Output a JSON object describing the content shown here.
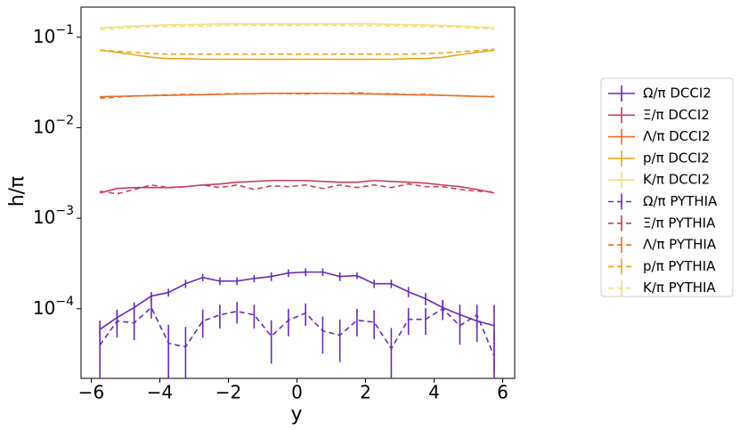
{
  "chart_data": {
    "type": "line",
    "y_label": "h/π",
    "x_label": "y",
    "log_y": true,
    "legend_position": "right",
    "xlim": [
      -6.3,
      6.35
    ],
    "ylim": [
      1.7e-05,
      0.215
    ],
    "xticks": [
      {
        "value": -6,
        "label": "−6"
      },
      {
        "value": -4,
        "label": "−4"
      },
      {
        "value": -2,
        "label": "−2"
      },
      0,
      2,
      4,
      6
    ],
    "yticks": [
      {
        "value": 0.0001,
        "label": "10",
        "exponent": "−4"
      },
      {
        "value": 0.001,
        "label": "10",
        "exponent": "−3"
      },
      {
        "value": 0.01,
        "label": "10",
        "exponent": "−2"
      },
      {
        "value": 0.1,
        "label": "10",
        "exponent": "−1"
      }
    ],
    "x": [
      -5.75,
      -5.25,
      -4.75,
      -4.25,
      -3.75,
      -3.25,
      -2.75,
      -2.25,
      -1.75,
      -1.25,
      -0.75,
      -0.25,
      0.25,
      0.75,
      1.25,
      1.75,
      2.25,
      2.75,
      3.25,
      3.75,
      4.25,
      4.75,
      5.25,
      5.75
    ],
    "series": [
      {
        "name": "Ω/π DCCI2",
        "color": "#6a2cb8",
        "dashed": false,
        "values": [
          5.9e-05,
          8e-05,
          0.000103,
          0.000138,
          0.000151,
          0.000189,
          0.000221,
          0.000202,
          0.000202,
          0.000216,
          0.000227,
          0.000248,
          0.000254,
          0.000254,
          0.000227,
          0.000232,
          0.000189,
          0.000189,
          0.000154,
          0.000129,
          0.000103,
          8.6e-05,
          7.3e-05,
          6.5e-05
        ],
        "errors": [
          1.5e-05,
          1.5e-05,
          1.5e-05,
          1.5e-05,
          1.5e-05,
          2e-05,
          2e-05,
          2e-05,
          2e-05,
          2e-05,
          2.5e-05,
          2.5e-05,
          2.5e-05,
          2.5e-05,
          2.5e-05,
          2e-05,
          2e-05,
          2e-05,
          2e-05,
          2e-05,
          2e-05,
          2.5e-05,
          3e-05,
          4.5e-05
        ]
      },
      {
        "name": "Ξ/π DCCI2",
        "color": "#c8405f",
        "dashed": false,
        "values": [
          0.0019,
          0.00213,
          0.00218,
          0.00218,
          0.00218,
          0.00223,
          0.00233,
          0.00239,
          0.0025,
          0.00255,
          0.00261,
          0.00261,
          0.00261,
          0.00255,
          0.0025,
          0.0025,
          0.00261,
          0.00255,
          0.0025,
          0.00244,
          0.00233,
          0.00223,
          0.00208,
          0.0019
        ]
      },
      {
        "name": "Λ/π DCCI2",
        "color": "#e8702a",
        "dashed": false,
        "values": [
          0.022,
          0.0222,
          0.0224,
          0.0226,
          0.0228,
          0.023,
          0.0232,
          0.0234,
          0.0236,
          0.0238,
          0.024,
          0.024,
          0.024,
          0.024,
          0.0238,
          0.0237,
          0.0236,
          0.0234,
          0.0232,
          0.023,
          0.0228,
          0.0225,
          0.0222,
          0.022
        ]
      },
      {
        "name": "p/π DCCI2",
        "color": "#e8a820",
        "dashed": false,
        "values": [
          0.072,
          0.068,
          0.064,
          0.06,
          0.058,
          0.058,
          0.057,
          0.057,
          0.057,
          0.057,
          0.057,
          0.057,
          0.057,
          0.057,
          0.057,
          0.057,
          0.057,
          0.057,
          0.058,
          0.058,
          0.06,
          0.064,
          0.068,
          0.072
        ]
      },
      {
        "name": "K/π DCCI2",
        "color": "#f0e080",
        "dashed": false,
        "values": [
          0.127,
          0.13,
          0.133,
          0.135,
          0.137,
          0.138,
          0.139,
          0.14,
          0.14,
          0.14,
          0.14,
          0.14,
          0.14,
          0.14,
          0.14,
          0.14,
          0.14,
          0.139,
          0.138,
          0.137,
          0.135,
          0.133,
          0.13,
          0.127
        ]
      },
      {
        "name": "Ω/π PYTHIA",
        "color": "#6a2cb8",
        "dashed": true,
        "values": [
          3.96e-05,
          7.3e-05,
          6.98e-05,
          0.000103,
          4.15e-05,
          3.79e-05,
          7.3e-05,
          8.55e-05,
          9.35e-05,
          8.55e-05,
          4.97e-05,
          7.46e-05,
          8.95e-05,
          5.69e-05,
          5.08e-05,
          7.46e-05,
          7.1e-05,
          3.62e-05,
          7.64e-05,
          7.64e-05,
          0.0001,
          6.5e-05,
          8.55e-05,
          3e-05
        ],
        "errors": [
          2.5e-05,
          2.5e-05,
          2.5e-05,
          2.5e-05,
          2.5e-05,
          2.5e-05,
          2.5e-05,
          2.5e-05,
          2.5e-05,
          2.5e-05,
          2.5e-05,
          2.5e-05,
          2.5e-05,
          2.5e-05,
          2.5e-05,
          2.5e-05,
          2.5e-05,
          2.5e-05,
          2.5e-05,
          2.5e-05,
          2.5e-05,
          2.5e-05,
          2.5e-05,
          2.5e-05
        ]
      },
      {
        "name": "Ξ/π PYTHIA",
        "color": "#c8405f",
        "dashed": true,
        "values": [
          0.00199,
          0.00186,
          0.00208,
          0.00233,
          0.00218,
          0.00223,
          0.00233,
          0.00218,
          0.00233,
          0.00208,
          0.00228,
          0.00223,
          0.00233,
          0.00213,
          0.00233,
          0.00218,
          0.00233,
          0.00218,
          0.00239,
          0.00223,
          0.00223,
          0.00208,
          0.00199,
          0.00195
        ]
      },
      {
        "name": "Λ/π PYTHIA",
        "color": "#e8702a",
        "dashed": true,
        "values": [
          0.0212,
          0.0218,
          0.0224,
          0.0228,
          0.023,
          0.0234,
          0.0232,
          0.0236,
          0.0238,
          0.0236,
          0.024,
          0.0238,
          0.0236,
          0.024,
          0.0238,
          0.0244,
          0.0236,
          0.0238,
          0.0232,
          0.0234,
          0.0228,
          0.0226,
          0.0222,
          0.0222
        ]
      },
      {
        "name": "p/π PYTHIA",
        "color": "#e8a820",
        "dashed": true,
        "values": [
          0.072,
          0.07,
          0.068,
          0.066,
          0.065,
          0.065,
          0.065,
          0.065,
          0.065,
          0.065,
          0.065,
          0.065,
          0.065,
          0.065,
          0.065,
          0.065,
          0.065,
          0.065,
          0.065,
          0.066,
          0.067,
          0.069,
          0.071,
          0.074
        ]
      },
      {
        "name": "K/π PYTHIA",
        "color": "#f0e080",
        "dashed": true,
        "values": [
          0.122,
          0.125,
          0.128,
          0.13,
          0.131,
          0.132,
          0.133,
          0.134,
          0.135,
          0.135,
          0.135,
          0.135,
          0.135,
          0.135,
          0.135,
          0.134,
          0.134,
          0.133,
          0.132,
          0.131,
          0.13,
          0.128,
          0.125,
          0.122
        ]
      }
    ]
  }
}
